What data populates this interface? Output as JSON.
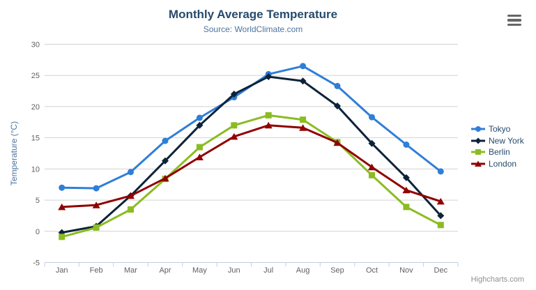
{
  "credits": {
    "label": "Highcharts.com"
  },
  "menu": {
    "icon": "hamburger-icon"
  },
  "colors": {
    "title": "#274b6d",
    "subtitle": "#4d759e",
    "axis_label": "#606060",
    "axis_title": "#4d759e",
    "grid": "#d2d2d2",
    "axis_line": "#c0d0e0",
    "legend_text": "#274b6d",
    "credits_text": "#909090",
    "menu_icon": "#666666"
  },
  "chart_data": {
    "type": "line",
    "title": "Monthly Average Temperature",
    "subtitle": "Source: WorldClimate.com",
    "xlabel": "",
    "ylabel": "Temperature (°C)",
    "categories": [
      "Jan",
      "Feb",
      "Mar",
      "Apr",
      "May",
      "Jun",
      "Jul",
      "Aug",
      "Sep",
      "Oct",
      "Nov",
      "Dec"
    ],
    "series": [
      {
        "name": "Tokyo",
        "color": "#2f7ed8",
        "marker": "circle",
        "values": [
          7.0,
          6.9,
          9.5,
          14.5,
          18.2,
          21.5,
          25.2,
          26.5,
          23.3,
          18.3,
          13.9,
          9.6
        ]
      },
      {
        "name": "New York",
        "color": "#0d233a",
        "marker": "diamond",
        "values": [
          -0.2,
          0.8,
          5.7,
          11.3,
          17.0,
          22.0,
          24.8,
          24.1,
          20.1,
          14.1,
          8.6,
          2.5
        ]
      },
      {
        "name": "Berlin",
        "color": "#8bbc21",
        "marker": "square",
        "values": [
          -0.9,
          0.6,
          3.5,
          8.4,
          13.5,
          17.0,
          18.6,
          17.9,
          14.3,
          9.0,
          3.9,
          1.0
        ]
      },
      {
        "name": "London",
        "color": "#910000",
        "marker": "triangle",
        "values": [
          3.9,
          4.2,
          5.7,
          8.5,
          11.9,
          15.2,
          17.0,
          16.6,
          14.2,
          10.3,
          6.6,
          4.8
        ]
      }
    ],
    "ylim": [
      -5,
      30
    ],
    "ytick_interval": 5,
    "grid": true,
    "legend_position": "right"
  }
}
